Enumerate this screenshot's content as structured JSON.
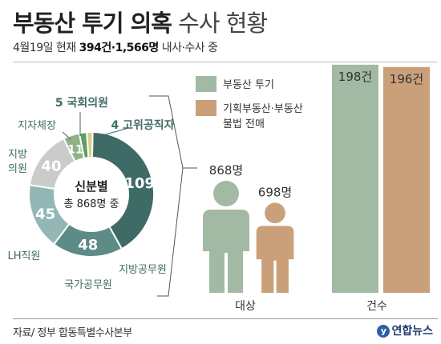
{
  "title_bold": "부동산 투기 의혹",
  "title_light": "수사 현황",
  "subtitle": {
    "prefix": "4월19일 현재 ",
    "cases": "394건",
    "sep": "·",
    "people": "1,566명",
    "suffix": " 내사·수사 중"
  },
  "donut": {
    "center_title": "신분별",
    "center_sub": "총 868명 중"
  },
  "legend": [
    {
      "label": "부동산 투기",
      "color": "#a2b9a4"
    },
    {
      "label": "기획부동산·부동산",
      "label2": "불법 전매",
      "color": "#c9a07a"
    }
  ],
  "bar_labels": {
    "target": "대상",
    "cases": "건수"
  },
  "source": "자료/ 정부 합동특별수사본부",
  "logo": "연합뉴스",
  "chart_data": [
    {
      "type": "pie",
      "title": "신분별",
      "subtitle": "총 868명 중",
      "slices": [
        {
          "label": "지방공무원",
          "value": 109,
          "color": "#3f6b66"
        },
        {
          "label": "국가공무원",
          "value": 48,
          "color": "#5d8c87"
        },
        {
          "label": "LH직원",
          "value": 45,
          "color": "#93b7b5"
        },
        {
          "label": "지방의원",
          "value": 40,
          "color": "#c9ccc8"
        },
        {
          "label": "지자체장",
          "value": 11,
          "color": "#8fb387"
        },
        {
          "label": "국회의원",
          "value": 5,
          "color": "#5f9e63"
        },
        {
          "label": "고위공직자",
          "value": 4,
          "color": "#d8cf86"
        }
      ]
    },
    {
      "type": "bar",
      "categories": [
        "대상",
        "건수"
      ],
      "series": [
        {
          "name": "부동산 투기",
          "values": [
            868,
            198
          ],
          "labels": [
            "868명",
            "198건"
          ],
          "color": "#a2b9a4"
        },
        {
          "name": "기획부동산·부동산 불법 전매",
          "values": [
            698,
            196
          ],
          "labels": [
            "698명",
            "196건"
          ],
          "color": "#c9a07a"
        }
      ]
    }
  ]
}
